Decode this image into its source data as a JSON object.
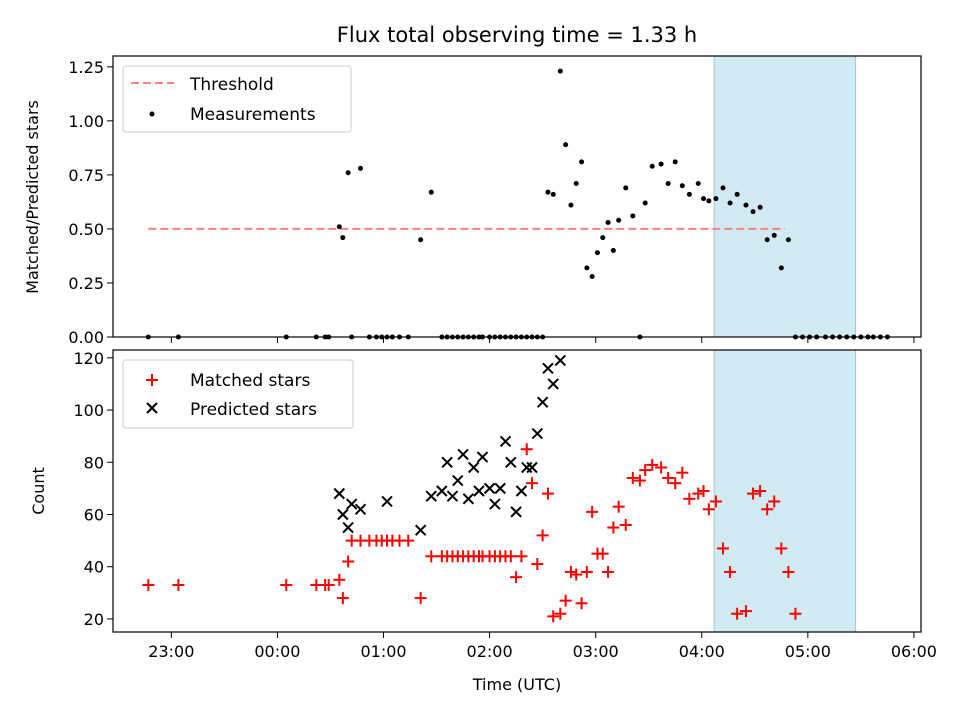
{
  "figure": {
    "title": "Flux total observing time = 1.33 h",
    "xlabel": "Time (UTC)",
    "x_ticks": [
      "23:00",
      "00:00",
      "01:00",
      "02:00",
      "03:00",
      "04:00",
      "05:00",
      "06:00"
    ],
    "x_tick_values": [
      -60,
      0,
      60,
      120,
      180,
      240,
      300,
      360
    ],
    "xlim": [
      -93,
      364
    ],
    "observing_window": {
      "start": 247,
      "end": 327,
      "color": "#add8e6"
    }
  },
  "chart_data": [
    {
      "type": "scatter",
      "title": "Flux total observing time = 1.33 h",
      "xlabel": "",
      "ylabel": "Matched/Predicted stars",
      "ylim": [
        0,
        1.3
      ],
      "y_ticks": [
        0.0,
        0.25,
        0.5,
        0.75,
        1.0,
        1.25
      ],
      "y_tick_labels": [
        "0.00",
        "0.25",
        "0.50",
        "0.75",
        "1.00",
        "1.25"
      ],
      "legend": {
        "position": "top-left",
        "entries": [
          "Threshold",
          "Measurements"
        ]
      },
      "series": [
        {
          "name": "Threshold",
          "kind": "line",
          "color": "#ff8080",
          "x": [
            -73,
            287
          ],
          "y": [
            0.5,
            0.5
          ]
        },
        {
          "name": "Measurements",
          "kind": "dot",
          "color": "#000000",
          "x": [
            -73,
            -56,
            5,
            22,
            27,
            29,
            35,
            37,
            40,
            42,
            47,
            52,
            56,
            59,
            62,
            65,
            69,
            74,
            81,
            87,
            93,
            96,
            99,
            102,
            105,
            108,
            111,
            114,
            116,
            120,
            123,
            126,
            129,
            132,
            135,
            138,
            141,
            144,
            147,
            150,
            153,
            156,
            160,
            163,
            166,
            169,
            172,
            175,
            178,
            181,
            184,
            187,
            190,
            193,
            197,
            201,
            205,
            208,
            212,
            217,
            221,
            225,
            229,
            233,
            238,
            241,
            244,
            248,
            252,
            256,
            260,
            265,
            269,
            273,
            277,
            281,
            285,
            289,
            293,
            297,
            301,
            305,
            310,
            314,
            318,
            322,
            326,
            330,
            334,
            337,
            341,
            345
          ],
          "y": [
            0,
            0,
            0,
            0,
            0,
            0,
            0.51,
            0.46,
            0.76,
            0,
            0.78,
            0,
            0,
            0,
            0,
            0,
            0,
            0,
            0.45,
            0.67,
            0,
            0,
            0,
            0,
            0,
            0,
            0,
            0,
            0,
            0,
            0,
            0,
            0,
            0,
            0,
            0,
            0,
            0,
            0,
            0,
            0.67,
            0.66,
            1.23,
            0.89,
            0.61,
            0.71,
            0.81,
            0.32,
            0.28,
            0.39,
            0.46,
            0.53,
            0.4,
            0.54,
            0.69,
            0.56,
            0,
            0.62,
            0.79,
            0.8,
            0.71,
            0.81,
            0.7,
            0.66,
            0.71,
            0.64,
            0.63,
            0.64,
            0.69,
            0.62,
            0.66,
            0.61,
            0.58,
            0.6,
            0.45,
            0.47,
            0.32,
            0.45,
            0,
            0,
            0,
            0,
            0,
            0,
            0,
            0,
            0,
            0,
            0,
            0,
            0,
            0
          ]
        }
      ]
    },
    {
      "type": "scatter",
      "title": "",
      "xlabel": "Time (UTC)",
      "ylabel": "Count",
      "ylim": [
        15,
        123
      ],
      "y_ticks": [
        20,
        40,
        60,
        80,
        100,
        120
      ],
      "y_tick_labels": [
        "20",
        "40",
        "60",
        "80",
        "100",
        "120"
      ],
      "legend": {
        "position": "top-left",
        "entries": [
          "Matched stars",
          "Predicted stars"
        ]
      },
      "series": [
        {
          "name": "Matched stars",
          "kind": "plus",
          "color": "#ff0000",
          "x": [
            -73,
            -56,
            5,
            22,
            27,
            29,
            35,
            37,
            40,
            42,
            47,
            52,
            56,
            59,
            62,
            65,
            69,
            74,
            81,
            87,
            93,
            96,
            99,
            102,
            105,
            108,
            111,
            114,
            116,
            120,
            123,
            126,
            129,
            132,
            135,
            138,
            141,
            144,
            147,
            150,
            153,
            156,
            160,
            163,
            166,
            169,
            172,
            175,
            178,
            181,
            184,
            187,
            190,
            193,
            197,
            201,
            205,
            208,
            212,
            217,
            221,
            225,
            229,
            233,
            238,
            241,
            244,
            248,
            252,
            256,
            260,
            265,
            269,
            273,
            277,
            281,
            285,
            289,
            293
          ],
          "y": [
            33,
            33,
            33,
            33,
            33,
            33,
            35,
            28,
            42,
            50,
            50,
            50,
            50,
            50,
            50,
            50,
            50,
            50,
            28,
            44,
            44,
            44,
            44,
            44,
            44,
            44,
            44,
            44,
            44,
            44,
            44,
            44,
            44,
            44,
            36,
            44,
            85,
            72,
            41,
            52,
            68,
            21,
            22,
            27,
            38,
            37,
            26,
            38,
            61,
            45,
            45,
            38,
            55,
            63,
            56,
            74,
            73,
            77,
            79,
            78,
            74,
            72,
            76,
            66,
            68,
            69,
            62,
            65,
            47,
            38,
            22,
            23,
            68,
            69,
            62,
            65,
            47,
            38,
            22
          ]
        },
        {
          "name": "Predicted stars",
          "kind": "x",
          "color": "#000000",
          "x": [
            35,
            37,
            40,
            42,
            47,
            62,
            81,
            87,
            93,
            96,
            99,
            102,
            105,
            108,
            111,
            114,
            116,
            120,
            123,
            126,
            129,
            132,
            135,
            138,
            141,
            144,
            147,
            150,
            153,
            156,
            160
          ],
          "y": [
            68,
            60,
            55,
            64,
            62,
            65,
            54,
            67,
            69,
            80,
            67,
            73,
            83,
            66,
            78,
            69,
            82,
            70,
            64,
            70,
            88,
            80,
            61,
            69,
            78,
            78,
            91,
            103,
            116,
            110,
            119
          ]
        }
      ]
    }
  ]
}
